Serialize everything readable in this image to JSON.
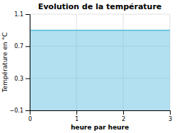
{
  "chart_data": {
    "type": "area",
    "title": "Evolution de la température",
    "xlabel": "heure par heure",
    "ylabel": "Température en °C",
    "x": [
      0,
      3
    ],
    "values": [
      0.9,
      0.9
    ],
    "color": "#55bbdd",
    "xlim": [
      0,
      3
    ],
    "ylim": [
      -0.1,
      1.1
    ],
    "xticks": [
      0,
      1,
      2,
      3
    ],
    "yticks": [
      {
        "value": -0.1,
        "label": "−0.1"
      },
      0.3,
      0.7,
      1.1
    ],
    "grid": true
  }
}
